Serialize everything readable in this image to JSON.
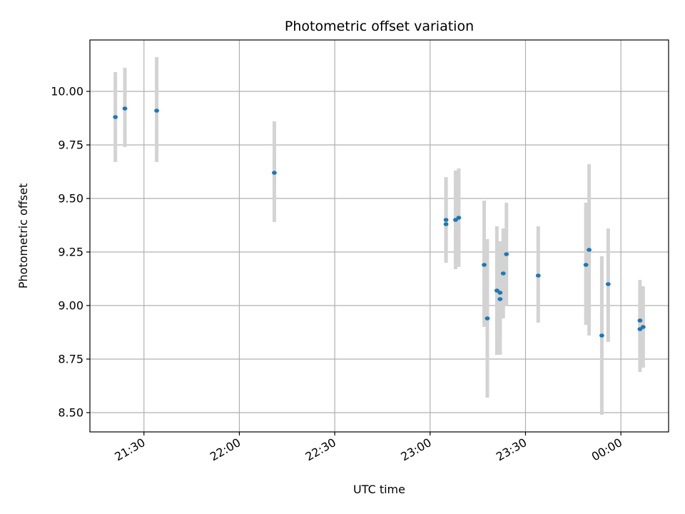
{
  "chart_data": {
    "type": "scatter",
    "title": "Photometric offset variation",
    "xlabel": "UTC time",
    "ylabel": "Photometric offset",
    "x_axis_type": "time",
    "xlim": [
      "21:13",
      "00:15"
    ],
    "ylim": [
      8.41,
      10.24
    ],
    "x_ticks": [
      "21:30",
      "22:00",
      "22:30",
      "23:00",
      "23:30",
      "00:00"
    ],
    "y_ticks": [
      "8.50",
      "8.75",
      "9.00",
      "9.25",
      "9.50",
      "9.75",
      "10.00"
    ],
    "grid": true,
    "legend": "none",
    "colors": {
      "point": "#1f77b4",
      "errorbar": "#d3d3d3",
      "grid": "#b0b0b0"
    },
    "points": [
      {
        "x": "21:21",
        "y": 9.88,
        "ylow": 9.67,
        "yhigh": 10.09
      },
      {
        "x": "21:24",
        "y": 9.92,
        "ylow": 9.74,
        "yhigh": 10.11
      },
      {
        "x": "21:34",
        "y": 9.91,
        "ylow": 9.67,
        "yhigh": 10.16
      },
      {
        "x": "22:11",
        "y": 9.62,
        "ylow": 9.39,
        "yhigh": 9.86
      },
      {
        "x": "23:05",
        "y": 9.38,
        "ylow": 9.2,
        "yhigh": 9.57
      },
      {
        "x": "23:05",
        "y": 9.4,
        "ylow": 9.2,
        "yhigh": 9.6
      },
      {
        "x": "23:08",
        "y": 9.4,
        "ylow": 9.17,
        "yhigh": 9.63
      },
      {
        "x": "23:09",
        "y": 9.41,
        "ylow": 9.18,
        "yhigh": 9.64
      },
      {
        "x": "23:17",
        "y": 9.19,
        "ylow": 8.9,
        "yhigh": 9.49
      },
      {
        "x": "23:18",
        "y": 8.94,
        "ylow": 8.57,
        "yhigh": 9.31
      },
      {
        "x": "23:21",
        "y": 9.07,
        "ylow": 8.77,
        "yhigh": 9.37
      },
      {
        "x": "23:22",
        "y": 9.03,
        "ylow": 8.77,
        "yhigh": 9.3
      },
      {
        "x": "23:22",
        "y": 9.06,
        "ylow": 8.84,
        "yhigh": 9.28
      },
      {
        "x": "23:23",
        "y": 9.15,
        "ylow": 8.94,
        "yhigh": 9.36
      },
      {
        "x": "23:24",
        "y": 9.24,
        "ylow": 9.0,
        "yhigh": 9.48
      },
      {
        "x": "23:34",
        "y": 9.14,
        "ylow": 8.92,
        "yhigh": 9.37
      },
      {
        "x": "23:49",
        "y": 9.19,
        "ylow": 8.91,
        "yhigh": 9.48
      },
      {
        "x": "23:50",
        "y": 9.26,
        "ylow": 8.86,
        "yhigh": 9.66
      },
      {
        "x": "23:54",
        "y": 8.86,
        "ylow": 8.49,
        "yhigh": 9.23
      },
      {
        "x": "23:56",
        "y": 9.1,
        "ylow": 8.83,
        "yhigh": 9.36
      },
      {
        "x": "00:06",
        "y": 8.93,
        "ylow": 8.74,
        "yhigh": 9.12
      },
      {
        "x": "00:06",
        "y": 8.89,
        "ylow": 8.69,
        "yhigh": 9.09
      },
      {
        "x": "00:07",
        "y": 8.9,
        "ylow": 8.71,
        "yhigh": 9.09
      }
    ]
  }
}
